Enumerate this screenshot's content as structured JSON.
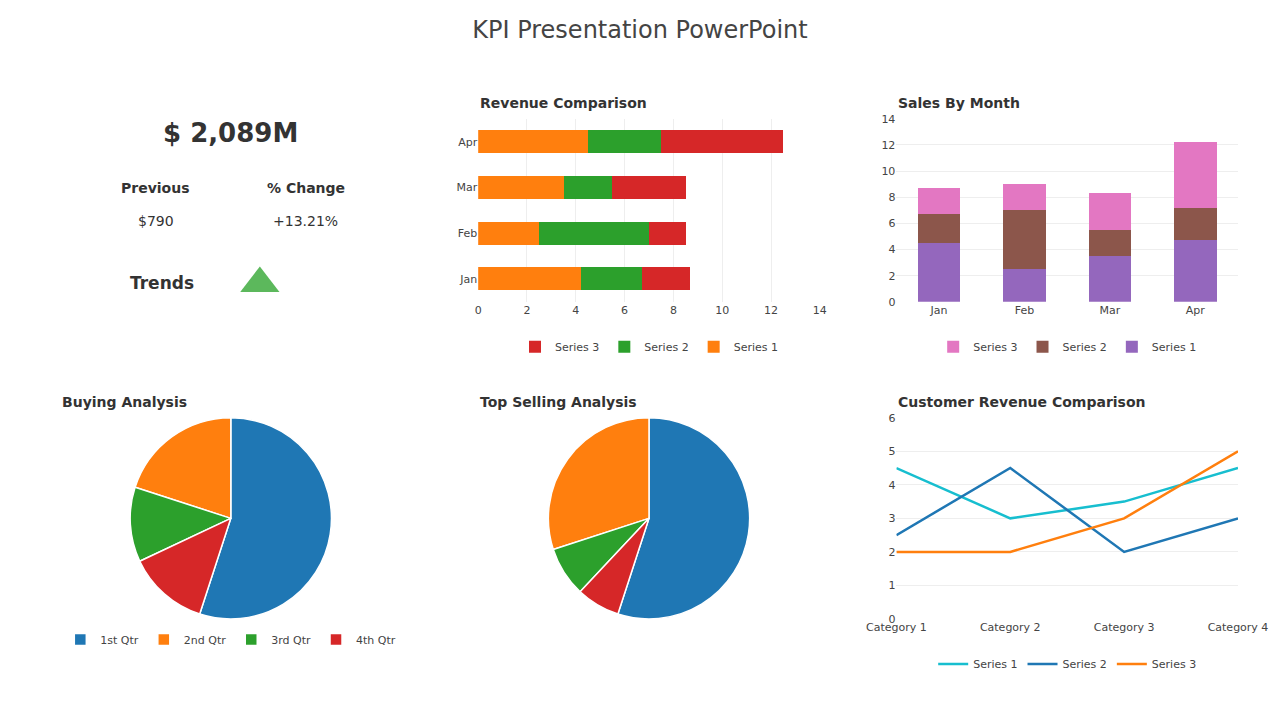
{
  "title": "KPI Presentation PowerPoint",
  "chart_data": [
    {
      "type": "kpi",
      "annotations": [
        "$ 2,089M",
        "Previous",
        "$790",
        "% Change",
        "+13.21%",
        "Trends"
      ],
      "marker": "triangle-up",
      "color": "#5cb85c"
    },
    {
      "type": "bar",
      "title": "Revenue Comparison",
      "orientation": "horizontal",
      "stacked": true,
      "categories": [
        "Jan",
        "Feb",
        "Mar",
        "Apr"
      ],
      "series": [
        {
          "name": "Series 1",
          "values": [
            4.2,
            2.5,
            3.5,
            4.5
          ]
        },
        {
          "name": "Series 2",
          "values": [
            2.5,
            4.5,
            2.0,
            3.0
          ]
        },
        {
          "name": "Series 3",
          "values": [
            2.0,
            1.5,
            3.0,
            5.0
          ]
        }
      ],
      "xlim": [
        0,
        14
      ],
      "xticks": [
        0,
        2,
        4,
        6,
        8,
        10,
        12,
        14
      ],
      "grid": true,
      "legend": "bottom"
    },
    {
      "type": "bar",
      "title": "Sales By Month",
      "stacked": true,
      "categories": [
        "Jan",
        "Feb",
        "Mar",
        "Apr"
      ],
      "series": [
        {
          "name": "Series 1",
          "values": [
            4.5,
            2.5,
            3.5,
            4.7
          ]
        },
        {
          "name": "Series 2",
          "values": [
            2.2,
            4.5,
            2.0,
            2.5
          ]
        },
        {
          "name": "Series 3",
          "values": [
            2.0,
            2.0,
            2.8,
            5.0
          ]
        }
      ],
      "ylim": [
        0,
        14
      ],
      "yticks": [
        0,
        2,
        4,
        6,
        8,
        10,
        12,
        14
      ],
      "grid": true,
      "legend": "bottom"
    },
    {
      "type": "pie",
      "title": "Buying Analysis",
      "categories": [
        "1st Qtr",
        "2nd Qtr",
        "3rd Qtr",
        "4th Qtr"
      ],
      "values": [
        55,
        20,
        12,
        13
      ],
      "legend": "bottom"
    },
    {
      "type": "pie",
      "title": "Top Selling Analysis",
      "categories": [
        "1st Qtr",
        "2nd Qtr",
        "3rd Qtr",
        "4th Qtr"
      ],
      "values": [
        55,
        30,
        8,
        7
      ],
      "legend": "bottom"
    },
    {
      "type": "line",
      "title": "Customer Revenue Comparison",
      "categories": [
        "Category 1",
        "Category 2",
        "Category 3",
        "Category 4"
      ],
      "series": [
        {
          "name": "Series 1",
          "values": [
            4.5,
            3.0,
            3.5,
            4.5
          ]
        },
        {
          "name": "Series 2",
          "values": [
            2.5,
            4.5,
            2.0,
            3.0
          ]
        },
        {
          "name": "Series 3",
          "values": [
            2.0,
            2.0,
            3.0,
            5.0
          ]
        }
      ],
      "ylim": [
        0,
        6
      ],
      "yticks": [
        0,
        1,
        2,
        3,
        4,
        5,
        6
      ],
      "grid": true,
      "legend": "bottom"
    }
  ]
}
